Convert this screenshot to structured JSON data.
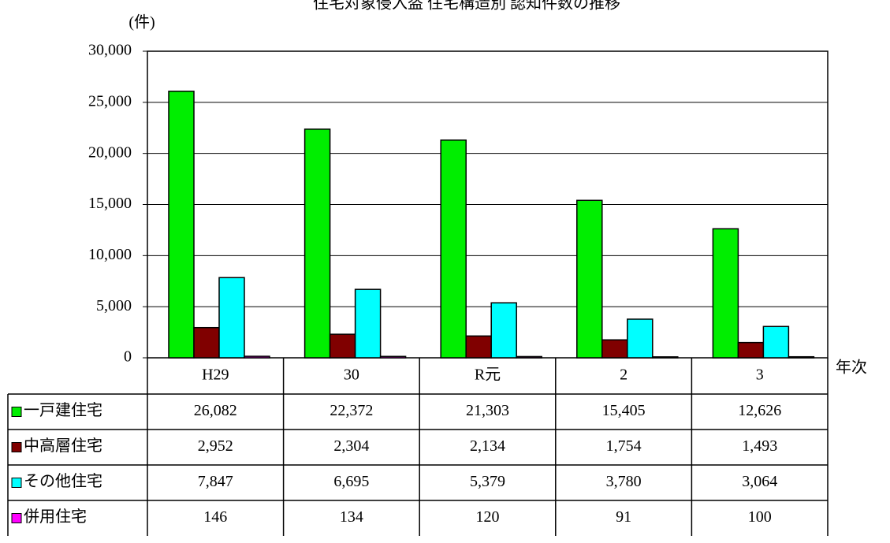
{
  "chart_data": {
    "type": "bar",
    "title": "住宅対象侵入盗 住宅構造別 認知件数の推移",
    "y_label": "(件)",
    "x_label": "年次",
    "categories": [
      "H29",
      "30",
      "R元",
      "2",
      "3"
    ],
    "series": [
      {
        "name": "一戸建住宅",
        "color": "#00ee00",
        "values": [
          26082,
          22372,
          21303,
          15405,
          12626
        ],
        "value_labels": [
          "26,082",
          "22,372",
          "21,303",
          "15,405",
          "12,626"
        ]
      },
      {
        "name": "中高層住宅",
        "color": "#800000",
        "values": [
          2952,
          2304,
          2134,
          1754,
          1493
        ],
        "value_labels": [
          "2,952",
          "2,304",
          "2,134",
          "1,754",
          "1,493"
        ]
      },
      {
        "name": "その他住宅",
        "color": "#00ffff",
        "values": [
          7847,
          6695,
          5379,
          3780,
          3064
        ],
        "value_labels": [
          "7,847",
          "6,695",
          "5,379",
          "3,780",
          "3,064"
        ]
      },
      {
        "name": "併用住宅",
        "color": "#ff00ff",
        "values": [
          146,
          134,
          120,
          91,
          100
        ]
      }
    ],
    "ylim": [
      0,
      30000
    ],
    "yticks": [
      0,
      {
        "value": 5000,
        "label": "5,000"
      },
      {
        "value": 10000,
        "label": "10,000"
      },
      {
        "value": 15000,
        "label": "15,000"
      },
      {
        "value": 20000,
        "label": "20,000"
      },
      {
        "value": 25000,
        "label": "25,000"
      },
      {
        "value": 30000,
        "label": "30,000"
      }
    ],
    "grid": true
  }
}
